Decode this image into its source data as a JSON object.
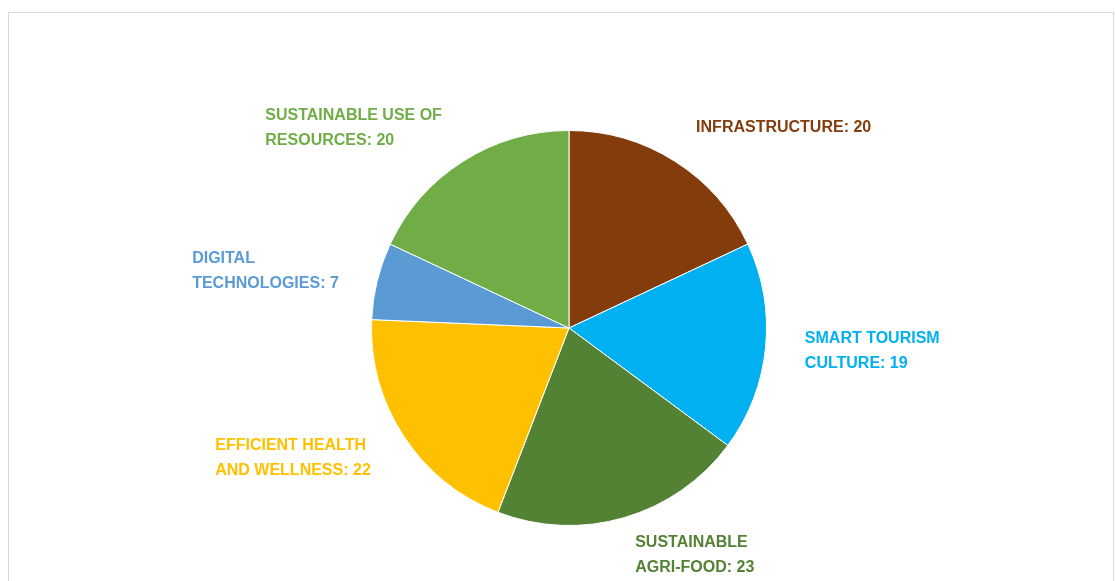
{
  "chart_data": {
    "type": "pie",
    "categories": [
      "INFRASTRUCTURE: 20",
      "SMART TOURISM CULTURE: 19",
      "SUSTAINABLE AGRI-FOOD: 23",
      "EFFICIENT HEALTH AND WELLNESS: 22",
      "DIGITAL TECHNOLOGIES: 7",
      "SUSTAINABLE USE OF RESOURCES: 20"
    ],
    "values": [
      20,
      19,
      23,
      22,
      7,
      20
    ],
    "colors": [
      "#843c0c",
      "#00b0f0",
      "#548235",
      "#ffc000",
      "#5b9bd5",
      "#70ad47"
    ]
  }
}
